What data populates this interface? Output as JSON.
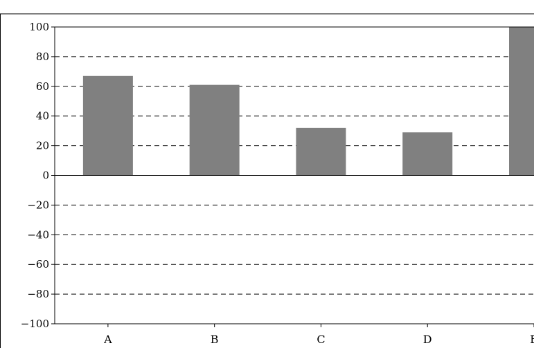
{
  "chart_data": {
    "type": "bar",
    "title": "",
    "xlabel": "",
    "ylabel": "",
    "categories": [
      "A",
      "B",
      "C",
      "D",
      "E"
    ],
    "values": [
      67,
      61,
      32,
      29,
      100
    ],
    "ylim": [
      -100,
      100
    ],
    "yticks": [
      -100,
      -80,
      -60,
      -40,
      -20,
      0,
      20,
      40,
      60,
      80,
      100
    ],
    "ytick_labels": [
      "−100",
      "−80",
      "−60",
      "−40",
      "−20",
      "0",
      "20",
      "40",
      "60",
      "80",
      "100"
    ],
    "grid": "horizontal dashed",
    "legend": "none",
    "bar_color": "#808080",
    "axis_color": "#000000",
    "grid_color": "#000000"
  }
}
